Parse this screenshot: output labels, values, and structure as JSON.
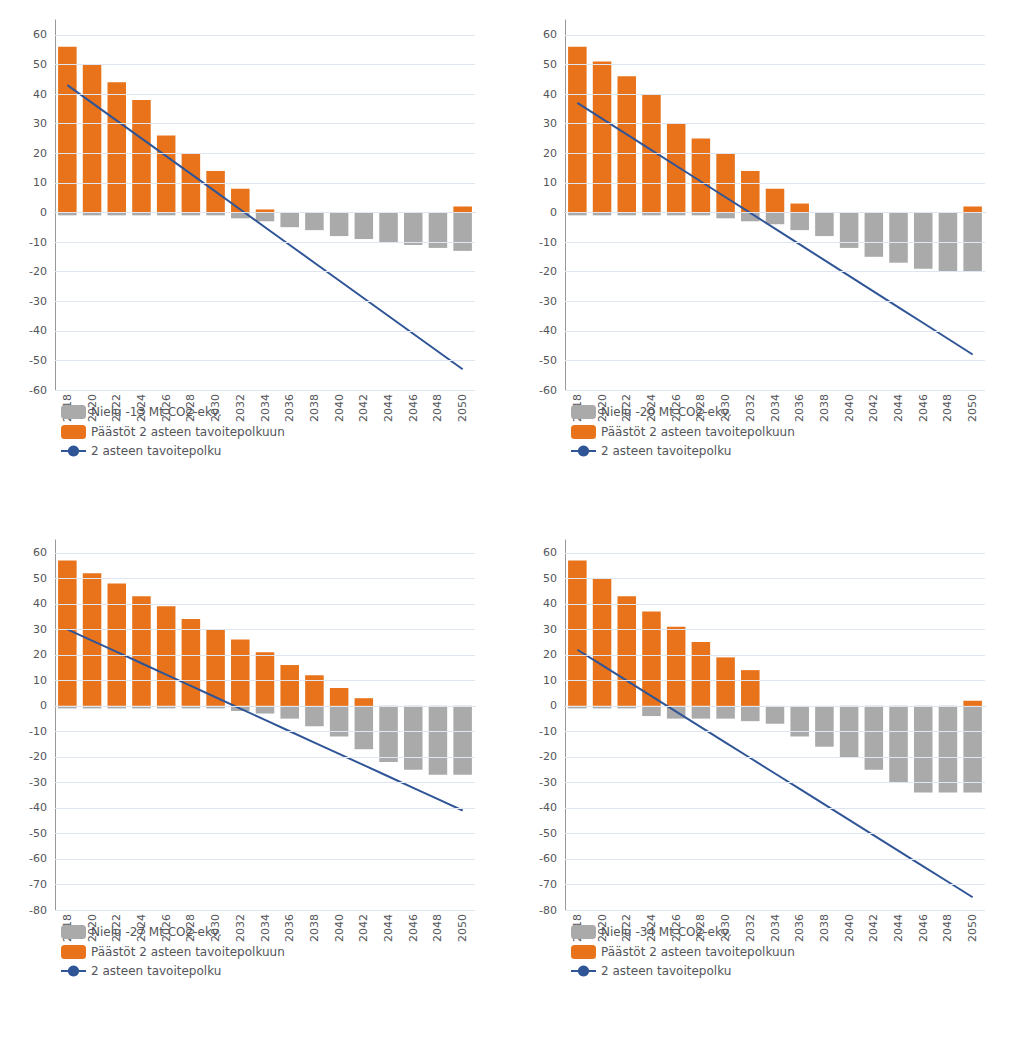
{
  "chart_data": [
    {
      "type": "bar",
      "categories": [
        "2018",
        "2020",
        "2022",
        "2024",
        "2026",
        "2028",
        "2030",
        "2032",
        "2034",
        "2036",
        "2038",
        "2040",
        "2042",
        "2044",
        "2046",
        "2048",
        "2050"
      ],
      "series": [
        {
          "name": "Nielu -13 Mt CO2-ekv.",
          "type": "bar",
          "color": "#AAAAAA",
          "values": [
            -1,
            -1,
            -1,
            -1,
            -1,
            -1,
            -1,
            -2,
            -3,
            -5,
            -6,
            -8,
            -9,
            -10,
            -11,
            -12,
            -13
          ]
        },
        {
          "name": "Päästöt 2 asteen tavoitepolkuun",
          "type": "bar",
          "color": "#E8731A",
          "values": [
            56,
            50,
            44,
            38,
            26,
            20,
            14,
            8,
            1,
            0,
            0,
            0,
            0,
            0,
            0,
            0,
            2
          ]
        },
        {
          "name": "2 asteen tavoitepolku",
          "type": "line",
          "color": "#2F5597",
          "values": [
            43,
            37,
            31,
            25,
            19,
            13,
            7,
            1,
            -5,
            -11,
            -17,
            -23,
            -29,
            -35,
            -41,
            -47,
            -53
          ]
        }
      ],
      "ylim": [
        -60,
        65
      ],
      "yticks": [
        -60,
        -50,
        -40,
        -30,
        -20,
        -10,
        0,
        10,
        20,
        30,
        40,
        50,
        60
      ],
      "grid": true,
      "legend": "lower left"
    },
    {
      "type": "bar",
      "categories": [
        "2018",
        "2020",
        "2022",
        "2024",
        "2026",
        "2028",
        "2030",
        "2032",
        "2034",
        "2036",
        "2038",
        "2040",
        "2042",
        "2044",
        "2046",
        "2048",
        "2050"
      ],
      "series": [
        {
          "name": "Nielu -20 Mt CO2-ekv.",
          "type": "bar",
          "color": "#AAAAAA",
          "values": [
            -1,
            -1,
            -1,
            -1,
            -1,
            -1,
            -2,
            -3,
            -4,
            -6,
            -8,
            -12,
            -15,
            -17,
            -19,
            -20,
            -20
          ]
        },
        {
          "name": "Päästöt 2 asteen tavoitepolkuun",
          "type": "bar",
          "color": "#E8731A",
          "values": [
            56,
            51,
            46,
            40,
            30,
            25,
            20,
            14,
            8,
            3,
            0,
            0,
            0,
            0,
            0,
            0,
            2
          ]
        },
        {
          "name": "2 asteen tavoitepolku",
          "type": "line",
          "color": "#2F5597",
          "values": [
            37,
            31.6875,
            26.375,
            21.0625,
            15.75,
            10.4375,
            5.125,
            -0.1875,
            -5.5,
            -10.8125,
            -16.125,
            -21.4375,
            -26.75,
            -32.0625,
            -37.375,
            -42.6875,
            -48
          ]
        }
      ],
      "ylim": [
        -60,
        65
      ],
      "yticks": [
        -60,
        -50,
        -40,
        -30,
        -20,
        -10,
        0,
        10,
        20,
        30,
        40,
        50,
        60
      ],
      "grid": true,
      "legend": "lower left"
    },
    {
      "type": "bar",
      "categories": [
        "2018",
        "2020",
        "2022",
        "2024",
        "2026",
        "2028",
        "2030",
        "2032",
        "2034",
        "2036",
        "2038",
        "2040",
        "2042",
        "2044",
        "2046",
        "2048",
        "2050"
      ],
      "series": [
        {
          "name": "Nielu -27 Mt CO2-ekv.",
          "type": "bar",
          "color": "#AAAAAA",
          "values": [
            -1,
            -1,
            -1,
            -1,
            -1,
            -1,
            -1,
            -2,
            -3,
            -5,
            -8,
            -12,
            -17,
            -22,
            -25,
            -27,
            -27
          ]
        },
        {
          "name": "Päästöt 2 asteen tavoitepolkuun",
          "type": "bar",
          "color": "#E8731A",
          "values": [
            57,
            52,
            48,
            43,
            39,
            34,
            30,
            26,
            21,
            16,
            12,
            7,
            3,
            0,
            0,
            0,
            0
          ]
        },
        {
          "name": "2 asteen tavoitepolku",
          "type": "line",
          "color": "#2F5597",
          "values": [
            30,
            25.5625,
            21.125,
            16.6875,
            12.25,
            7.8125,
            3.375,
            -1.0625,
            -5.5,
            -9.9375,
            -14.375,
            -18.8125,
            -23.25,
            -27.6875,
            -32.125,
            -36.5625,
            -41
          ]
        }
      ],
      "ylim": [
        -80,
        65
      ],
      "yticks": [
        -80,
        -70,
        -60,
        -50,
        -40,
        -30,
        -20,
        -10,
        0,
        10,
        20,
        30,
        40,
        50,
        60
      ],
      "grid": true,
      "legend": "lower left"
    },
    {
      "type": "bar",
      "categories": [
        "2018",
        "2020",
        "2022",
        "2024",
        "2026",
        "2028",
        "2030",
        "2032",
        "2034",
        "2036",
        "2038",
        "2040",
        "2042",
        "2044",
        "2046",
        "2048",
        "2050"
      ],
      "series": [
        {
          "name": "Nielu -34 Mt CO2-ekv.",
          "type": "bar",
          "color": "#AAAAAA",
          "values": [
            -1,
            -1,
            -1,
            -4,
            -5,
            -5,
            -5,
            -6,
            -7,
            -12,
            -16,
            -20,
            -25,
            -30,
            -34,
            -34,
            -34
          ]
        },
        {
          "name": "Päästöt 2 asteen tavoitepolkuun",
          "type": "bar",
          "color": "#E8731A",
          "values": [
            57,
            50,
            43,
            37,
            31,
            25,
            19,
            14,
            0,
            0,
            0,
            0,
            0,
            0,
            0,
            0,
            2
          ]
        },
        {
          "name": "2 asteen tavoitepolku",
          "type": "line",
          "color": "#2F5597",
          "values": [
            22,
            15.9375,
            9.875,
            3.8125,
            -2.25,
            -8.3125,
            -14.375,
            -20.4375,
            -26.5,
            -32.5625,
            -38.625,
            -44.6875,
            -50.75,
            -56.8125,
            -62.875,
            -68.9375,
            -75
          ]
        }
      ],
      "ylim": [
        -80,
        65
      ],
      "yticks": [
        -80,
        -70,
        -60,
        -50,
        -40,
        -30,
        -20,
        -10,
        0,
        10,
        20,
        30,
        40,
        50,
        60
      ],
      "grid": true,
      "legend": "lower left"
    }
  ]
}
